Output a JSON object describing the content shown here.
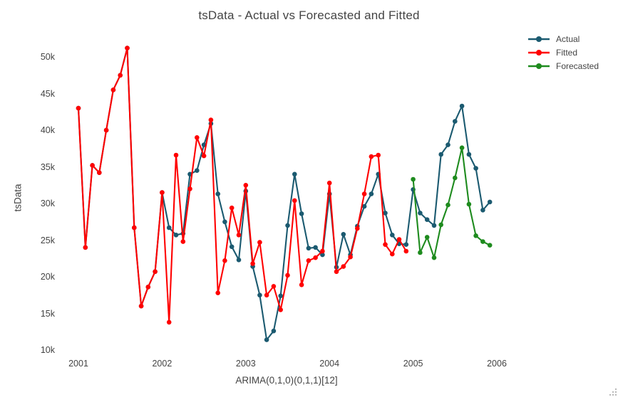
{
  "title": "tsData - Actual vs Forecasted and Fitted",
  "chart_data": {
    "type": "line",
    "title": "tsData - Actual vs Forecasted and Fitted",
    "xlabel": "ARIMA(0,1,0)(0,1,1)[12]",
    "ylabel": "tsData",
    "frequency": "monthly",
    "grid": false,
    "legend_position": "top-right",
    "x_tick_labels": [
      "2001",
      "2002",
      "2003",
      "2004",
      "2005",
      "2006"
    ],
    "x_tick_years": [
      2001,
      2002,
      2003,
      2004,
      2005,
      2006
    ],
    "y_tick_labels": [
      "10k",
      "15k",
      "20k",
      "25k",
      "30k",
      "35k",
      "40k",
      "45k",
      "50k"
    ],
    "y_tick_values_k": [
      10,
      15,
      20,
      25,
      30,
      35,
      40,
      45,
      50
    ],
    "y_units": "thousands",
    "series": [
      {
        "name": "Actual",
        "color": "#1b5a70",
        "start": "2001-01",
        "values_k": [
          43.0,
          24.0,
          35.2,
          34.2,
          40.0,
          45.5,
          47.5,
          51.2,
          26.7,
          16.0,
          18.6,
          20.7,
          31.5,
          26.7,
          25.7,
          25.9,
          34.0,
          34.5,
          38.0,
          40.9,
          31.3,
          27.5,
          24.1,
          22.3,
          31.7,
          21.4,
          17.5,
          11.4,
          12.6,
          17.4,
          27.0,
          34.0,
          28.6,
          23.9,
          24.0,
          23.0,
          31.3,
          21.3,
          25.8,
          23.0,
          26.9,
          29.6,
          31.3,
          34.0,
          28.7,
          25.7,
          24.5,
          24.4,
          31.9,
          28.7,
          27.8,
          27.0,
          36.7,
          38.0,
          41.2,
          43.3,
          36.7,
          34.8,
          29.1,
          30.2
        ]
      },
      {
        "name": "Fitted",
        "color": "#ff0000",
        "start": "2001-01",
        "values_k": [
          43.0,
          24.0,
          35.2,
          34.2,
          40.0,
          45.5,
          47.5,
          51.2,
          26.7,
          16.0,
          18.6,
          20.7,
          31.5,
          13.8,
          36.6,
          24.8,
          32.0,
          39.0,
          36.5,
          41.4,
          17.8,
          22.2,
          29.4,
          25.7,
          32.5,
          21.8,
          24.7,
          17.5,
          18.7,
          15.5,
          20.2,
          30.4,
          18.9,
          22.2,
          22.6,
          23.5,
          32.8,
          20.7,
          21.4,
          22.7,
          26.6,
          31.3,
          36.4,
          36.6,
          24.4,
          23.1,
          25.1,
          23.5
        ]
      },
      {
        "name": "Forecasted",
        "color": "#1e8b1e",
        "start": "2005-01",
        "values_k": [
          33.3,
          23.3,
          25.4,
          22.6,
          27.1,
          29.8,
          33.5,
          37.6,
          29.9,
          25.6,
          24.8,
          24.3
        ]
      }
    ]
  }
}
